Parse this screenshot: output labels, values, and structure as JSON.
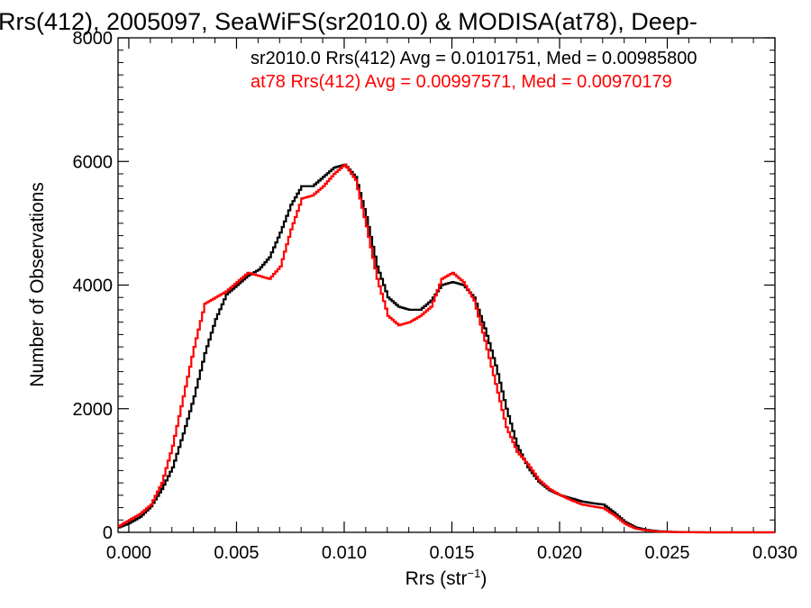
{
  "chart_data": {
    "type": "line",
    "title": "Rrs(412), 2005097, SeaWiFS(sr2010.0) & MODISA(at78), Deep-",
    "xlabel": "Rrs (str",
    "xlabel_sup": "−1",
    "xlabel_close": ")",
    "ylabel": "Number of Observations",
    "xlim": [
      -0.0005,
      0.03
    ],
    "ylim": [
      0,
      8000
    ],
    "grid": false,
    "xticks": [
      {
        "value": 0.0,
        "label": "0.000"
      },
      {
        "value": 0.005,
        "label": "0.005"
      },
      {
        "value": 0.01,
        "label": "0.010"
      },
      {
        "value": 0.015,
        "label": "0.015"
      },
      {
        "value": 0.02,
        "label": "0.020"
      },
      {
        "value": 0.025,
        "label": "0.025"
      },
      {
        "value": 0.03,
        "label": "0.030"
      }
    ],
    "yticks": [
      {
        "value": 0,
        "label": "0"
      },
      {
        "value": 2000,
        "label": "2000"
      },
      {
        "value": 4000,
        "label": "4000"
      },
      {
        "value": 6000,
        "label": "6000"
      },
      {
        "value": 8000,
        "label": "8000"
      }
    ],
    "annotations": [
      {
        "text": "sr2010.0 Rrs(412) Avg = 0.0101751, Med = 0.00985800",
        "color": "#000000"
      },
      {
        "text": "at78 Rrs(412) Avg = 0.00997571, Med = 0.00970179",
        "color": "#ff0000"
      }
    ],
    "series": [
      {
        "color": "#000000",
        "points": [
          [
            -0.0005,
            80
          ],
          [
            0.0,
            150
          ],
          [
            0.0005,
            250
          ],
          [
            0.001,
            420
          ],
          [
            0.0015,
            700
          ],
          [
            0.002,
            1050
          ],
          [
            0.0025,
            1600
          ],
          [
            0.003,
            2200
          ],
          [
            0.0035,
            2900
          ],
          [
            0.004,
            3450
          ],
          [
            0.0045,
            3850
          ],
          [
            0.005,
            4000
          ],
          [
            0.0055,
            4150
          ],
          [
            0.006,
            4250
          ],
          [
            0.0065,
            4450
          ],
          [
            0.007,
            4850
          ],
          [
            0.0075,
            5300
          ],
          [
            0.008,
            5600
          ],
          [
            0.0085,
            5600
          ],
          [
            0.009,
            5750
          ],
          [
            0.0095,
            5900
          ],
          [
            0.01,
            5950
          ],
          [
            0.0105,
            5750
          ],
          [
            0.011,
            5100
          ],
          [
            0.0115,
            4300
          ],
          [
            0.012,
            3800
          ],
          [
            0.0125,
            3650
          ],
          [
            0.013,
            3600
          ],
          [
            0.0135,
            3600
          ],
          [
            0.014,
            3750
          ],
          [
            0.0145,
            4000
          ],
          [
            0.015,
            4050
          ],
          [
            0.0155,
            4000
          ],
          [
            0.016,
            3800
          ],
          [
            0.0165,
            3300
          ],
          [
            0.017,
            2700
          ],
          [
            0.0175,
            2000
          ],
          [
            0.018,
            1400
          ],
          [
            0.0185,
            1050
          ],
          [
            0.019,
            820
          ],
          [
            0.0195,
            680
          ],
          [
            0.02,
            600
          ],
          [
            0.0205,
            550
          ],
          [
            0.021,
            500
          ],
          [
            0.0215,
            470
          ],
          [
            0.022,
            450
          ],
          [
            0.0225,
            320
          ],
          [
            0.023,
            170
          ],
          [
            0.0235,
            80
          ],
          [
            0.024,
            40
          ],
          [
            0.0245,
            20
          ],
          [
            0.025,
            10
          ],
          [
            0.0255,
            5
          ],
          [
            0.026,
            2
          ],
          [
            0.027,
            0
          ],
          [
            0.028,
            0
          ],
          [
            0.029,
            0
          ],
          [
            0.03,
            0
          ]
        ]
      },
      {
        "color": "#ff0000",
        "points": [
          [
            -0.0005,
            100
          ],
          [
            0.0,
            200
          ],
          [
            0.0005,
            300
          ],
          [
            0.001,
            450
          ],
          [
            0.0015,
            800
          ],
          [
            0.002,
            1400
          ],
          [
            0.0025,
            2200
          ],
          [
            0.003,
            3000
          ],
          [
            0.0035,
            3700
          ],
          [
            0.004,
            3800
          ],
          [
            0.0045,
            3900
          ],
          [
            0.005,
            4050
          ],
          [
            0.0055,
            4200
          ],
          [
            0.006,
            4150
          ],
          [
            0.0065,
            4100
          ],
          [
            0.007,
            4300
          ],
          [
            0.0075,
            4900
          ],
          [
            0.008,
            5400
          ],
          [
            0.0085,
            5450
          ],
          [
            0.009,
            5600
          ],
          [
            0.0095,
            5800
          ],
          [
            0.01,
            5950
          ],
          [
            0.0105,
            5700
          ],
          [
            0.011,
            4950
          ],
          [
            0.0115,
            4100
          ],
          [
            0.012,
            3500
          ],
          [
            0.0125,
            3350
          ],
          [
            0.013,
            3400
          ],
          [
            0.0135,
            3500
          ],
          [
            0.014,
            3650
          ],
          [
            0.0145,
            4100
          ],
          [
            0.015,
            4200
          ],
          [
            0.0155,
            4050
          ],
          [
            0.016,
            3750
          ],
          [
            0.0165,
            3100
          ],
          [
            0.017,
            2400
          ],
          [
            0.0175,
            1700
          ],
          [
            0.018,
            1300
          ],
          [
            0.0185,
            1100
          ],
          [
            0.019,
            850
          ],
          [
            0.0195,
            700
          ],
          [
            0.02,
            600
          ],
          [
            0.0205,
            520
          ],
          [
            0.021,
            450
          ],
          [
            0.0215,
            420
          ],
          [
            0.022,
            390
          ],
          [
            0.0225,
            280
          ],
          [
            0.023,
            140
          ],
          [
            0.0235,
            60
          ],
          [
            0.024,
            30
          ],
          [
            0.0245,
            15
          ],
          [
            0.025,
            8
          ],
          [
            0.0255,
            3
          ],
          [
            0.026,
            1
          ],
          [
            0.027,
            0
          ],
          [
            0.028,
            0
          ],
          [
            0.029,
            0
          ],
          [
            0.03,
            0
          ]
        ]
      }
    ]
  }
}
